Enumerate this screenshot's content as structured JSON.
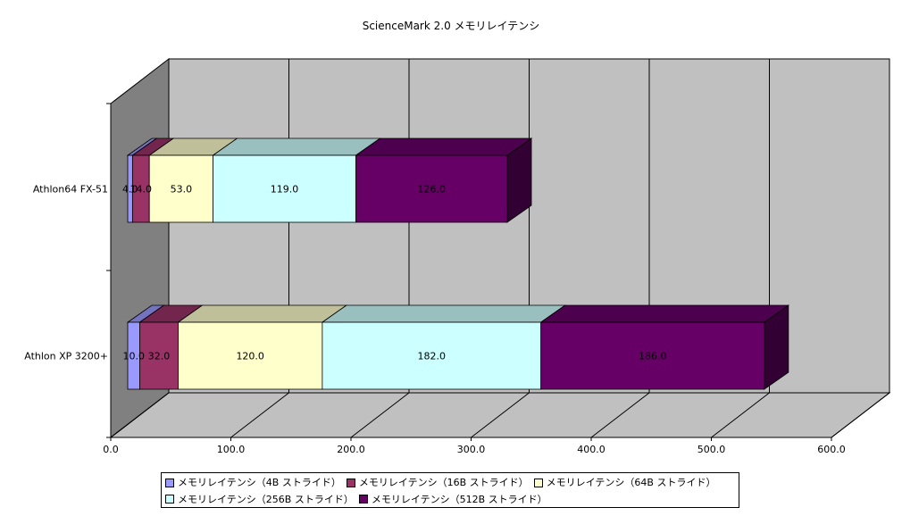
{
  "chart_data": {
    "type": "bar",
    "orientation": "horizontal",
    "stacked": true,
    "three_d": true,
    "title": "ScienceMark 2.0 メモリレイテンシ",
    "categories": [
      "Athlon XP 3200+",
      "Athlon64 FX-51"
    ],
    "x_ticks": [
      "0.0",
      "100.0",
      "200.0",
      "300.0",
      "400.0",
      "500.0",
      "600.0"
    ],
    "xlim": [
      0,
      600
    ],
    "grid": true,
    "legend_position": "bottom",
    "series": [
      {
        "name": "メモリレイテンシ（4B ストライド）",
        "values": [
          10.0,
          4.0
        ],
        "labels": [
          "10.0",
          "4.0"
        ],
        "color": "#9999ff"
      },
      {
        "name": "メモリレイテンシ（16B ストライド）",
        "values": [
          32.0,
          14.0
        ],
        "labels": [
          "32.0",
          "14.0"
        ],
        "color": "#993366"
      },
      {
        "name": "メモリレイテンシ（64B ストライド）",
        "values": [
          120.0,
          53.0
        ],
        "labels": [
          "120.0",
          "53.0"
        ],
        "color": "#ffffcc"
      },
      {
        "name": "メモリレイテンシ（256B ストライド）",
        "values": [
          182.0,
          119.0
        ],
        "labels": [
          "182.0",
          "119.0"
        ],
        "color": "#ccffff"
      },
      {
        "name": "メモリレイテンシ（512B ストライド）",
        "values": [
          186.0,
          126.0
        ],
        "labels": [
          "186.0",
          "126.0"
        ],
        "color": "#660066"
      }
    ]
  }
}
